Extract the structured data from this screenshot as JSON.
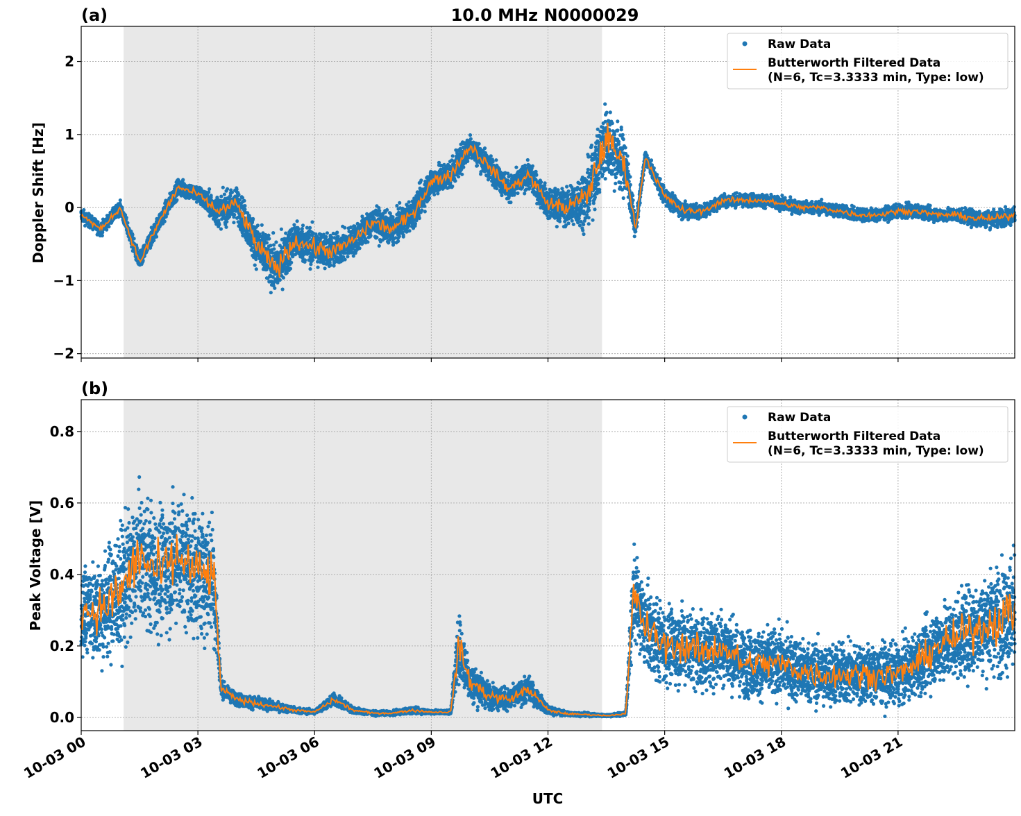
{
  "title": "10.0 MHz N0000029",
  "colors": {
    "raw": "#1f77b4",
    "filtered": "#ff7f0e",
    "shade": "#e8e8e8",
    "grid": "#b0b0b0"
  },
  "xlabel": "UTC",
  "x_ticks": [
    "10-03 00",
    "10-03 03",
    "10-03 06",
    "10-03 09",
    "10-03 12",
    "10-03 15",
    "10-03 18",
    "10-03 21"
  ],
  "x_tick_hours": [
    0,
    3,
    6,
    9,
    12,
    15,
    18,
    21
  ],
  "xlim_hours": [
    0,
    24
  ],
  "legend": {
    "raw": "Raw Data",
    "filtered_line1": "Butterworth Filtered Data",
    "filtered_line2": "(N=6, Tc=3.3333 min, Type: low)",
    "placement": "upper-right"
  },
  "chart_data": [
    {
      "type": "scatter+line",
      "panel_label": "(a)",
      "ylabel": "Doppler Shift [Hz]",
      "ylim": [
        -2.06,
        2.48
      ],
      "y_ticks": [
        "2",
        "1",
        "0",
        "−1",
        "−2"
      ],
      "y_tick_values": [
        2,
        1,
        0,
        -1,
        -2
      ],
      "grid": true,
      "shaded_span_hours": [
        1.09,
        13.39
      ],
      "x_hours": [
        0,
        0.5,
        1,
        1.5,
        2,
        2.5,
        3,
        3.5,
        4,
        4.5,
        5,
        5.5,
        6,
        6.5,
        7,
        7.5,
        8,
        8.5,
        9,
        9.5,
        10,
        10.5,
        11,
        11.5,
        12,
        12.5,
        13,
        13.5,
        14,
        14.25,
        14.5,
        15,
        15.5,
        16,
        16.5,
        17,
        17.5,
        18,
        18.5,
        19,
        19.5,
        20,
        20.5,
        21,
        21.5,
        22,
        22.5,
        23,
        23.5,
        24
      ],
      "filtered": [
        -0.1,
        -0.3,
        0.0,
        -0.75,
        -0.2,
        0.28,
        0.18,
        -0.05,
        0.05,
        -0.5,
        -0.85,
        -0.45,
        -0.55,
        -0.6,
        -0.45,
        -0.2,
        -0.3,
        -0.1,
        0.35,
        0.45,
        0.85,
        0.55,
        0.25,
        0.45,
        0.05,
        0.0,
        0.15,
        0.95,
        0.55,
        -0.3,
        0.7,
        0.15,
        -0.05,
        -0.05,
        0.1,
        0.1,
        0.1,
        0.05,
        0.0,
        0.0,
        -0.05,
        -0.1,
        -0.1,
        -0.05,
        -0.05,
        -0.1,
        -0.1,
        -0.15,
        -0.15,
        -0.1
      ],
      "raw_spread": [
        0.15,
        0.15,
        0.15,
        0.2,
        0.2,
        0.2,
        0.2,
        0.35,
        0.4,
        0.5,
        0.6,
        0.45,
        0.45,
        0.4,
        0.35,
        0.35,
        0.35,
        0.35,
        0.35,
        0.35,
        0.3,
        0.3,
        0.3,
        0.3,
        0.35,
        0.45,
        0.7,
        0.9,
        0.7,
        0.2,
        0.15,
        0.2,
        0.2,
        0.15,
        0.15,
        0.15,
        0.15,
        0.15,
        0.15,
        0.15,
        0.15,
        0.15,
        0.15,
        0.15,
        0.15,
        0.15,
        0.15,
        0.2,
        0.2,
        0.2
      ]
    },
    {
      "type": "scatter+line",
      "panel_label": "(b)",
      "ylabel": "Peak Voltage [V]",
      "ylim": [
        -0.037,
        0.889
      ],
      "y_ticks": [
        "0.8",
        "0.6",
        "0.4",
        "0.2",
        "0.0"
      ],
      "y_tick_values": [
        0.8,
        0.6,
        0.4,
        0.2,
        0.0
      ],
      "grid": true,
      "shaded_span_hours": [
        1.09,
        13.39
      ],
      "x_hours": [
        0,
        0.5,
        1,
        1.5,
        2,
        2.5,
        3,
        3.4,
        3.6,
        4,
        4.5,
        5,
        5.5,
        6,
        6.5,
        7,
        7.5,
        8,
        8.5,
        9,
        9.5,
        9.7,
        10,
        10.5,
        11,
        11.5,
        12,
        12.5,
        13,
        13.5,
        14,
        14.2,
        14.5,
        15,
        15.5,
        16,
        16.5,
        17,
        17.5,
        18,
        18.5,
        19,
        19.5,
        20,
        20.5,
        21,
        21.5,
        22,
        22.5,
        23,
        23.5,
        24
      ],
      "filtered": [
        0.3,
        0.3,
        0.35,
        0.45,
        0.4,
        0.45,
        0.4,
        0.4,
        0.08,
        0.05,
        0.04,
        0.03,
        0.02,
        0.015,
        0.05,
        0.02,
        0.012,
        0.012,
        0.02,
        0.015,
        0.015,
        0.2,
        0.1,
        0.06,
        0.05,
        0.08,
        0.02,
        0.01,
        0.008,
        0.005,
        0.01,
        0.35,
        0.25,
        0.2,
        0.2,
        0.18,
        0.2,
        0.15,
        0.15,
        0.15,
        0.13,
        0.12,
        0.12,
        0.12,
        0.12,
        0.12,
        0.15,
        0.2,
        0.22,
        0.25,
        0.27,
        0.3
      ],
      "raw_spread": [
        0.2,
        0.25,
        0.3,
        0.3,
        0.3,
        0.3,
        0.3,
        0.3,
        0.04,
        0.03,
        0.03,
        0.02,
        0.015,
        0.01,
        0.03,
        0.015,
        0.01,
        0.01,
        0.015,
        0.01,
        0.01,
        0.15,
        0.1,
        0.06,
        0.05,
        0.06,
        0.02,
        0.01,
        0.008,
        0.005,
        0.01,
        0.2,
        0.2,
        0.18,
        0.18,
        0.18,
        0.18,
        0.16,
        0.16,
        0.16,
        0.15,
        0.15,
        0.15,
        0.14,
        0.14,
        0.14,
        0.15,
        0.18,
        0.2,
        0.22,
        0.25,
        0.28
      ]
    }
  ]
}
